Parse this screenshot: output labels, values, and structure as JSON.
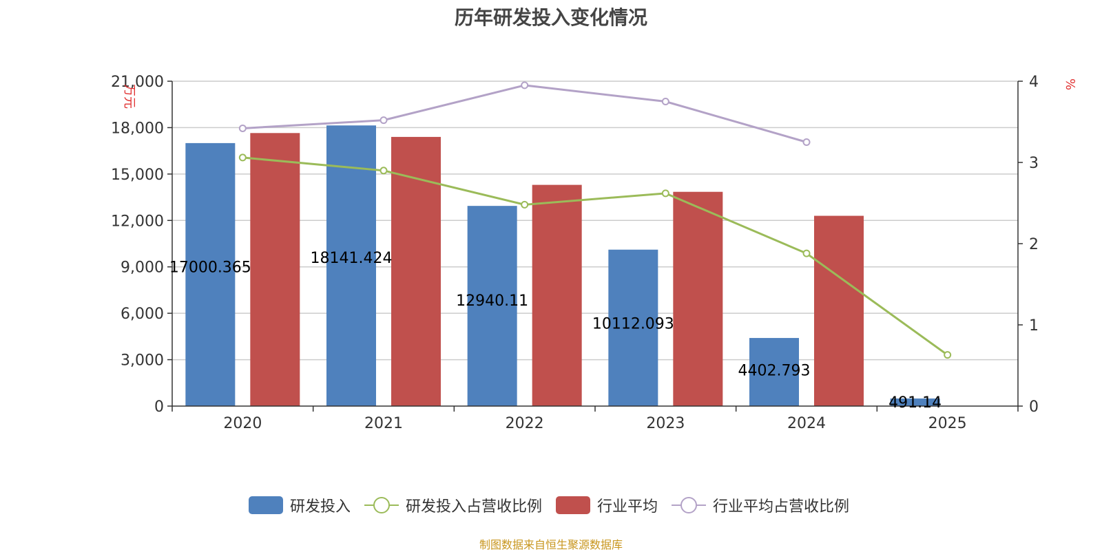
{
  "chart_data": {
    "type": "bar",
    "title": "历年研发投入变化情况",
    "categories": [
      "2020",
      "2021",
      "2022",
      "2023",
      "2024",
      "2025"
    ],
    "y_left": {
      "label": "万元",
      "min": 0,
      "max": 21000,
      "ticks": [
        "0",
        "3,000",
        "6,000",
        "9,000",
        "12,000",
        "15,000",
        "18,000",
        "21,000"
      ]
    },
    "y_right": {
      "label": "%",
      "min": 0,
      "max": 4,
      "ticks": [
        "0",
        "1",
        "2",
        "3",
        "4"
      ]
    },
    "grid": true,
    "legend_position": "bottom",
    "series": [
      {
        "name": "研发投入",
        "type": "bar",
        "axis": "left",
        "color": "#4f81bd",
        "values": [
          17000.365,
          18141.424,
          12940.11,
          10112.093,
          4402.793,
          491.14
        ],
        "labels": [
          "17000.365",
          "18141.424",
          "12940.11",
          "10112.093",
          "4402.793",
          "491.14"
        ]
      },
      {
        "name": "研发投入占营收比例",
        "type": "line",
        "axis": "right",
        "color": "#9bbb59",
        "values": [
          3.06,
          2.9,
          2.48,
          2.62,
          1.88,
          0.63
        ]
      },
      {
        "name": "行业平均",
        "type": "bar",
        "axis": "left",
        "color": "#c0504d",
        "values": [
          17650,
          17400,
          14300,
          13850,
          12300,
          null
        ]
      },
      {
        "name": "行业平均占营收比例",
        "type": "line",
        "axis": "right",
        "color": "#b3a2c7",
        "values": [
          3.42,
          3.52,
          3.95,
          3.75,
          3.25,
          null
        ]
      }
    ]
  },
  "source_note": "制图数据来自恒生聚源数据库"
}
